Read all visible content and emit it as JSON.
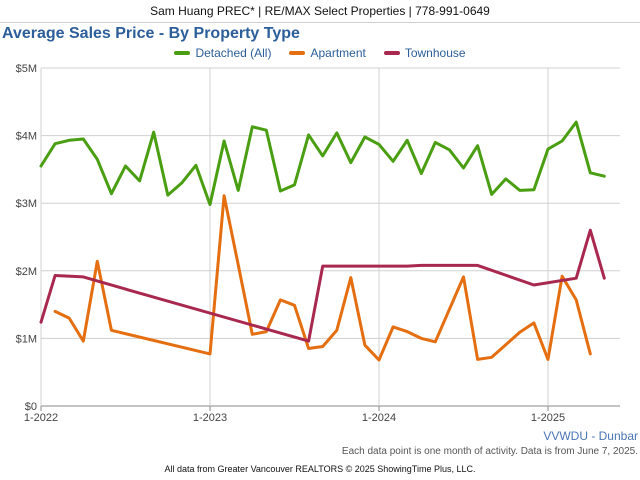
{
  "header": {
    "text": "Sam Huang PREC* | RE/MAX Select Properties | 778-991-0649"
  },
  "note": "Each data point is one month of activity. Data is from June 7, 2025.",
  "footer": "All data from Greater Vancouver REALTORS © 2025 ShowingTime Plus, LLC.",
  "watermark": "VVWDU - Dunbar",
  "colors": {
    "detached": "#4a9e12",
    "apartment": "#e46e10",
    "townhouse": "#a8284f",
    "grid": "#d0d0d0",
    "text": "#2b5e9a"
  },
  "chart_data": {
    "type": "line",
    "title": "Average Sales Price - By Property Type",
    "ylabel": "",
    "xlabel": "",
    "ylim": [
      0,
      5000000
    ],
    "yticks": [
      {
        "value": 0,
        "label": "$0"
      },
      {
        "value": 1000000,
        "label": "$1M"
      },
      {
        "value": 2000000,
        "label": "$2M"
      },
      {
        "value": 3000000,
        "label": "$3M"
      },
      {
        "value": 4000000,
        "label": "$4M"
      },
      {
        "value": 5000000,
        "label": "$5M"
      }
    ],
    "xticks": [
      {
        "value": "2022-01",
        "label": "1-2022"
      },
      {
        "value": "2023-01",
        "label": "1-2023"
      },
      {
        "value": "2024-01",
        "label": "1-2024"
      },
      {
        "value": "2025-01",
        "label": "1-2025"
      }
    ],
    "xlim": [
      "2022-01",
      "2025-05"
    ],
    "legend": "top",
    "grid": true,
    "series": [
      {
        "name": "Detached (All)",
        "points": [
          [
            "2022-01",
            3550000
          ],
          [
            "2022-02",
            3880000
          ],
          [
            "2022-03",
            3930000
          ],
          [
            "2022-04",
            3950000
          ],
          [
            "2022-05",
            3650000
          ],
          [
            "2022-06",
            3140000
          ],
          [
            "2022-07",
            3550000
          ],
          [
            "2022-08",
            3330000
          ],
          [
            "2022-09",
            4050000
          ],
          [
            "2022-10",
            3120000
          ],
          [
            "2022-11",
            3300000
          ],
          [
            "2022-12",
            3560000
          ],
          [
            "2023-01",
            2980000
          ],
          [
            "2023-02",
            3920000
          ],
          [
            "2023-03",
            3190000
          ],
          [
            "2023-04",
            4130000
          ],
          [
            "2023-05",
            4080000
          ],
          [
            "2023-06",
            3180000
          ],
          [
            "2023-07",
            3270000
          ],
          [
            "2023-08",
            4010000
          ],
          [
            "2023-09",
            3700000
          ],
          [
            "2023-10",
            4040000
          ],
          [
            "2023-11",
            3600000
          ],
          [
            "2023-12",
            3980000
          ],
          [
            "2024-01",
            3870000
          ],
          [
            "2024-02",
            3620000
          ],
          [
            "2024-03",
            3930000
          ],
          [
            "2024-04",
            3440000
          ],
          [
            "2024-05",
            3900000
          ],
          [
            "2024-06",
            3790000
          ],
          [
            "2024-07",
            3520000
          ],
          [
            "2024-08",
            3850000
          ],
          [
            "2024-09",
            3130000
          ],
          [
            "2024-10",
            3360000
          ],
          [
            "2024-11",
            3190000
          ],
          [
            "2024-12",
            3200000
          ],
          [
            "2025-01",
            3800000
          ],
          [
            "2025-02",
            3920000
          ],
          [
            "2025-03",
            4200000
          ],
          [
            "2025-04",
            3450000
          ],
          [
            "2025-05",
            3400000
          ]
        ]
      },
      {
        "name": "Apartment",
        "points": [
          [
            "2022-02",
            1400000
          ],
          [
            "2022-03",
            1300000
          ],
          [
            "2022-04",
            960000
          ],
          [
            "2022-05",
            2140000
          ],
          [
            "2022-06",
            1120000
          ],
          [
            "2023-01",
            770000
          ],
          [
            "2023-02",
            3110000
          ],
          [
            "2023-03",
            2090000
          ],
          [
            "2023-04",
            1060000
          ],
          [
            "2023-05",
            1100000
          ],
          [
            "2023-06",
            1570000
          ],
          [
            "2023-07",
            1490000
          ],
          [
            "2023-08",
            850000
          ],
          [
            "2023-09",
            880000
          ],
          [
            "2023-10",
            1120000
          ],
          [
            "2023-11",
            1900000
          ],
          [
            "2023-12",
            900000
          ],
          [
            "2024-01",
            680000
          ],
          [
            "2024-02",
            1170000
          ],
          [
            "2024-03",
            1100000
          ],
          [
            "2024-04",
            1000000
          ],
          [
            "2024-05",
            950000
          ],
          [
            "2024-07",
            1910000
          ],
          [
            "2024-08",
            690000
          ],
          [
            "2024-09",
            720000
          ],
          [
            "2024-11",
            1090000
          ],
          [
            "2024-12",
            1230000
          ],
          [
            "2025-01",
            690000
          ],
          [
            "2025-02",
            1920000
          ],
          [
            "2025-03",
            1570000
          ],
          [
            "2025-04",
            770000
          ]
        ]
      },
      {
        "name": "Townhouse",
        "points": [
          [
            "2022-01",
            1240000
          ],
          [
            "2022-02",
            1930000
          ],
          [
            "2022-04",
            1910000
          ],
          [
            "2022-07",
            1730000
          ],
          [
            "2023-08",
            960000
          ],
          [
            "2023-09",
            2070000
          ],
          [
            "2024-03",
            2070000
          ],
          [
            "2024-04",
            2080000
          ],
          [
            "2024-08",
            2080000
          ],
          [
            "2024-12",
            1790000
          ],
          [
            "2025-03",
            1890000
          ],
          [
            "2025-04",
            2600000
          ],
          [
            "2025-05",
            1890000
          ]
        ]
      }
    ]
  }
}
